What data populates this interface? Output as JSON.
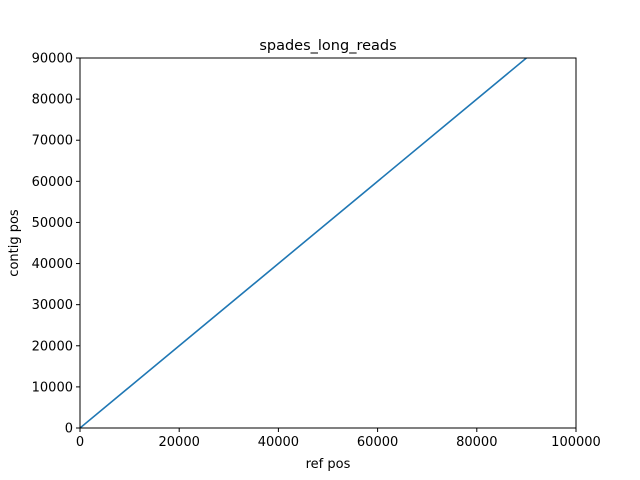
{
  "chart_data": {
    "type": "line",
    "title": "spades_long_reads",
    "xlabel": "ref pos",
    "ylabel": "contig pos",
    "xlim": [
      0,
      100000
    ],
    "ylim": [
      0,
      90000
    ],
    "x_ticks": [
      "0",
      "20000",
      "40000",
      "60000",
      "80000",
      "100000"
    ],
    "y_ticks": [
      "0",
      "10000",
      "20000",
      "30000",
      "40000",
      "50000",
      "60000",
      "70000",
      "80000",
      "90000"
    ],
    "grid": false,
    "series": [
      {
        "color": "#1f77b4",
        "x": [
          0,
          90000
        ],
        "y": [
          0,
          90000
        ]
      }
    ]
  }
}
